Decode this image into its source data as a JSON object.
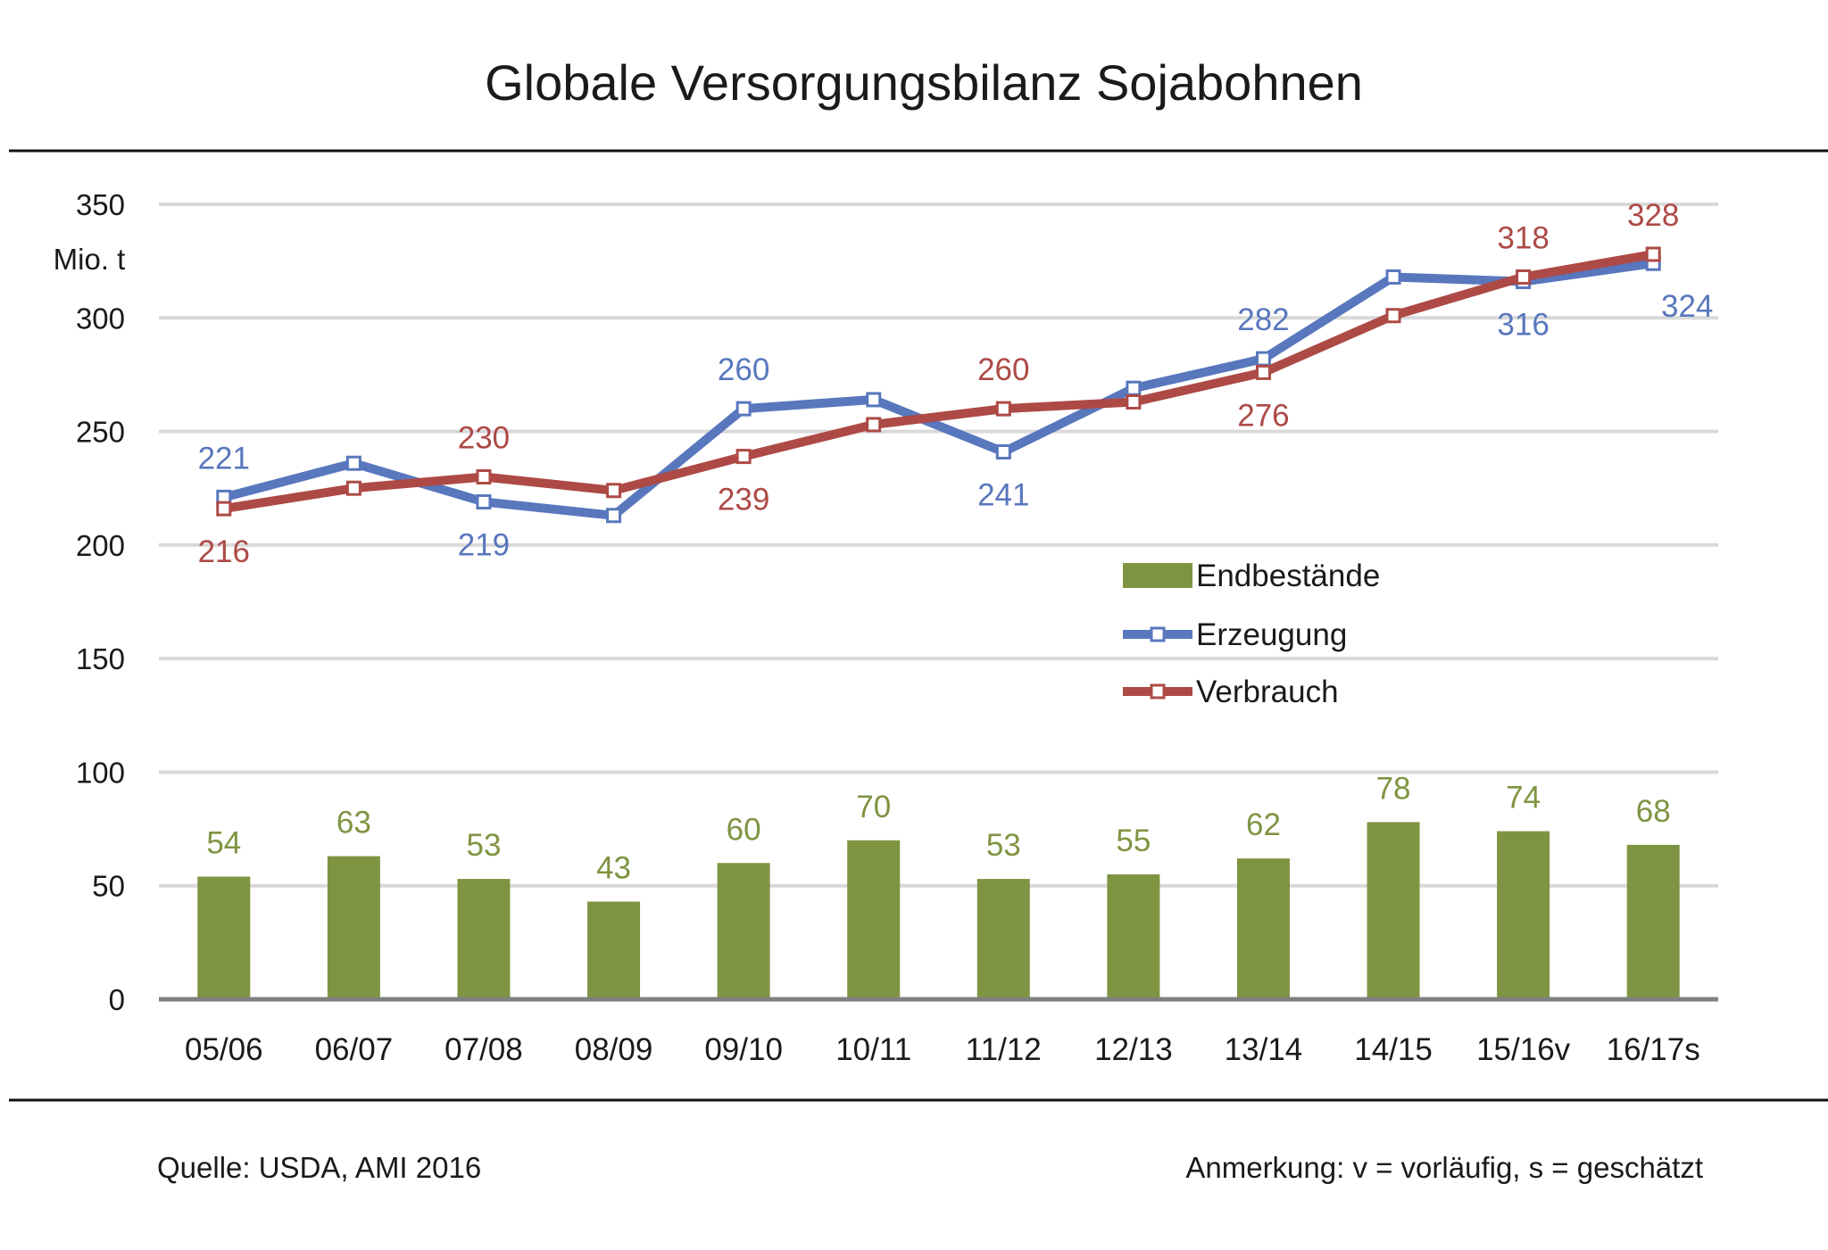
{
  "chart_data": {
    "type": "bar",
    "title": "Globale Versorgungsbilanz Sojabohnen",
    "unit_label": "Mio. t",
    "categories": [
      "05/06",
      "06/07",
      "07/08",
      "08/09",
      "09/10",
      "10/11",
      "11/12",
      "12/13",
      "13/14",
      "14/15",
      "15/16v",
      "16/17s"
    ],
    "ylim": [
      0,
      350
    ],
    "yticks": [
      "0",
      "50",
      "100",
      "150",
      "200",
      "250",
      "300",
      "350"
    ],
    "grid": true,
    "legend_position": "center-right",
    "series": [
      {
        "name": "Endbestände",
        "kind": "bar",
        "color": "#7f9442",
        "values": [
          54,
          63,
          53,
          43,
          60,
          70,
          53,
          55,
          62,
          78,
          74,
          68
        ],
        "labels": [
          "54",
          "63",
          "53",
          "43",
          "60",
          "70",
          "53",
          "55",
          "62",
          "78",
          "74",
          "68"
        ]
      },
      {
        "name": "Erzeugung",
        "kind": "line",
        "color": "#5877bd",
        "values": [
          221,
          236,
          219,
          213,
          260,
          264,
          241,
          269,
          282,
          318,
          316,
          324
        ],
        "labels": [
          "221",
          "",
          "219",
          "",
          "260",
          "",
          "241",
          "",
          "282",
          "",
          "316",
          "324"
        ]
      },
      {
        "name": "Verbrauch",
        "kind": "line",
        "color": "#ad4a46",
        "values": [
          216,
          225,
          230,
          224,
          239,
          253,
          260,
          263,
          276,
          301,
          318,
          328
        ],
        "labels": [
          "216",
          "",
          "230",
          "",
          "239",
          "",
          "260",
          "",
          "276",
          "",
          "318",
          "328"
        ]
      }
    ]
  },
  "footer": {
    "source": "Quelle: USDA, AMI 2016",
    "note": "Anmerkung: v = vorläufig, s = geschätzt"
  }
}
